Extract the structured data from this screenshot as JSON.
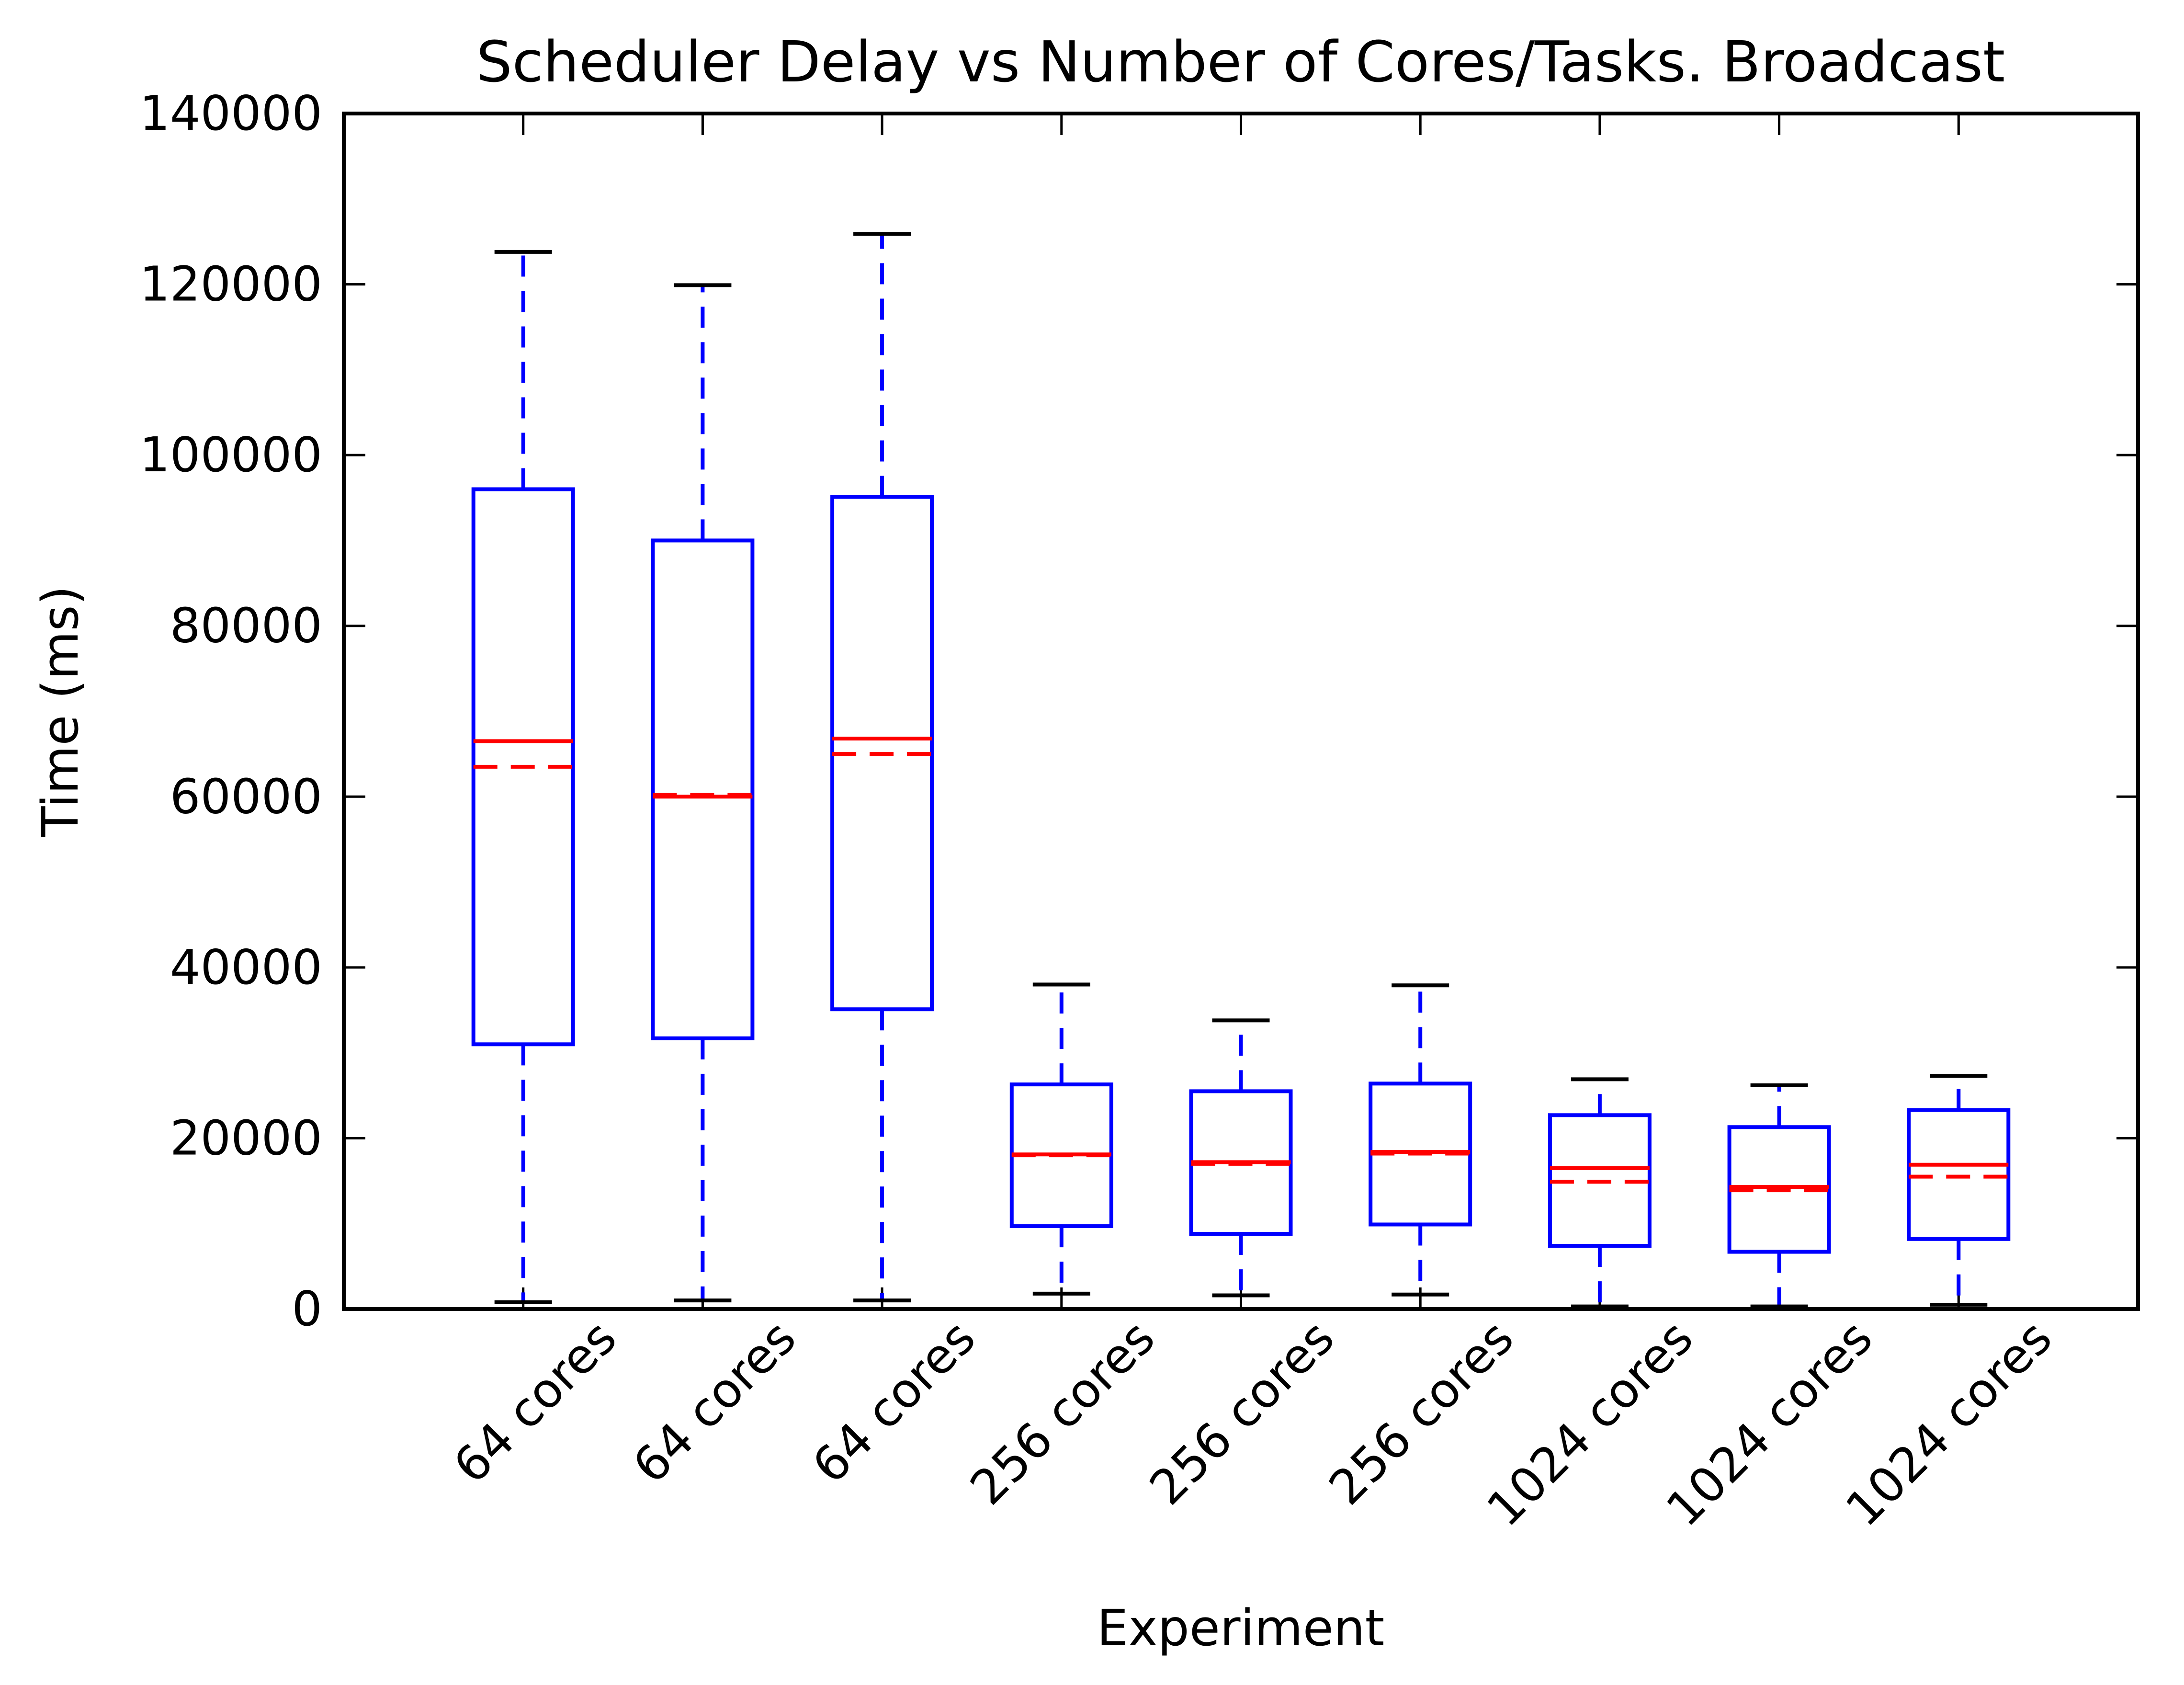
{
  "chart_data": {
    "type": "box",
    "title": "Scheduler Delay vs Number of Cores/Tasks. Broadcast",
    "xlabel": "Experiment",
    "ylabel": "Time (ms)",
    "ylim": [
      0,
      140000
    ],
    "yticks": [
      0,
      20000,
      40000,
      60000,
      80000,
      100000,
      120000,
      140000
    ],
    "ytick_labels": [
      "0",
      "20000",
      "40000",
      "60000",
      "80000",
      "100000",
      "120000",
      "140000"
    ],
    "categories": [
      "64 cores",
      "64 cores",
      "64 cores",
      "256 cores",
      "256 cores",
      "256 cores",
      "1024 cores",
      "1024 cores",
      "1024 cores"
    ],
    "boxes": [
      {
        "whisker_low": 800,
        "q1": 31000,
        "median": 66500,
        "mean": 63500,
        "q3": 96000,
        "whisker_high": 123800
      },
      {
        "whisker_low": 1000,
        "q1": 31700,
        "median": 60000,
        "mean": 60200,
        "q3": 90000,
        "whisker_high": 119900
      },
      {
        "whisker_low": 1000,
        "q1": 35100,
        "median": 66800,
        "mean": 65000,
        "q3": 95100,
        "whisker_high": 125900
      },
      {
        "whisker_low": 1800,
        "q1": 9700,
        "median": 18100,
        "mean": 18000,
        "q3": 26300,
        "whisker_high": 38000
      },
      {
        "whisker_low": 1600,
        "q1": 8800,
        "median": 17200,
        "mean": 17000,
        "q3": 25500,
        "whisker_high": 33800
      },
      {
        "whisker_low": 1700,
        "q1": 9900,
        "median": 18400,
        "mean": 18200,
        "q3": 26400,
        "whisker_high": 37900
      },
      {
        "whisker_low": 300,
        "q1": 7400,
        "median": 16500,
        "mean": 14900,
        "q3": 22700,
        "whisker_high": 26900
      },
      {
        "whisker_low": 300,
        "q1": 6700,
        "median": 14300,
        "mean": 13900,
        "q3": 21300,
        "whisker_high": 26200
      },
      {
        "whisker_low": 500,
        "q1": 8200,
        "median": 16900,
        "mean": 15500,
        "q3": 23300,
        "whisker_high": 27300
      }
    ],
    "colors": {
      "box": "#0000ff",
      "whisker": "#0000ff",
      "cap": "#000000",
      "median": "#ff0000",
      "mean": "#ff0000",
      "frame": "#000000"
    },
    "grid": false
  }
}
